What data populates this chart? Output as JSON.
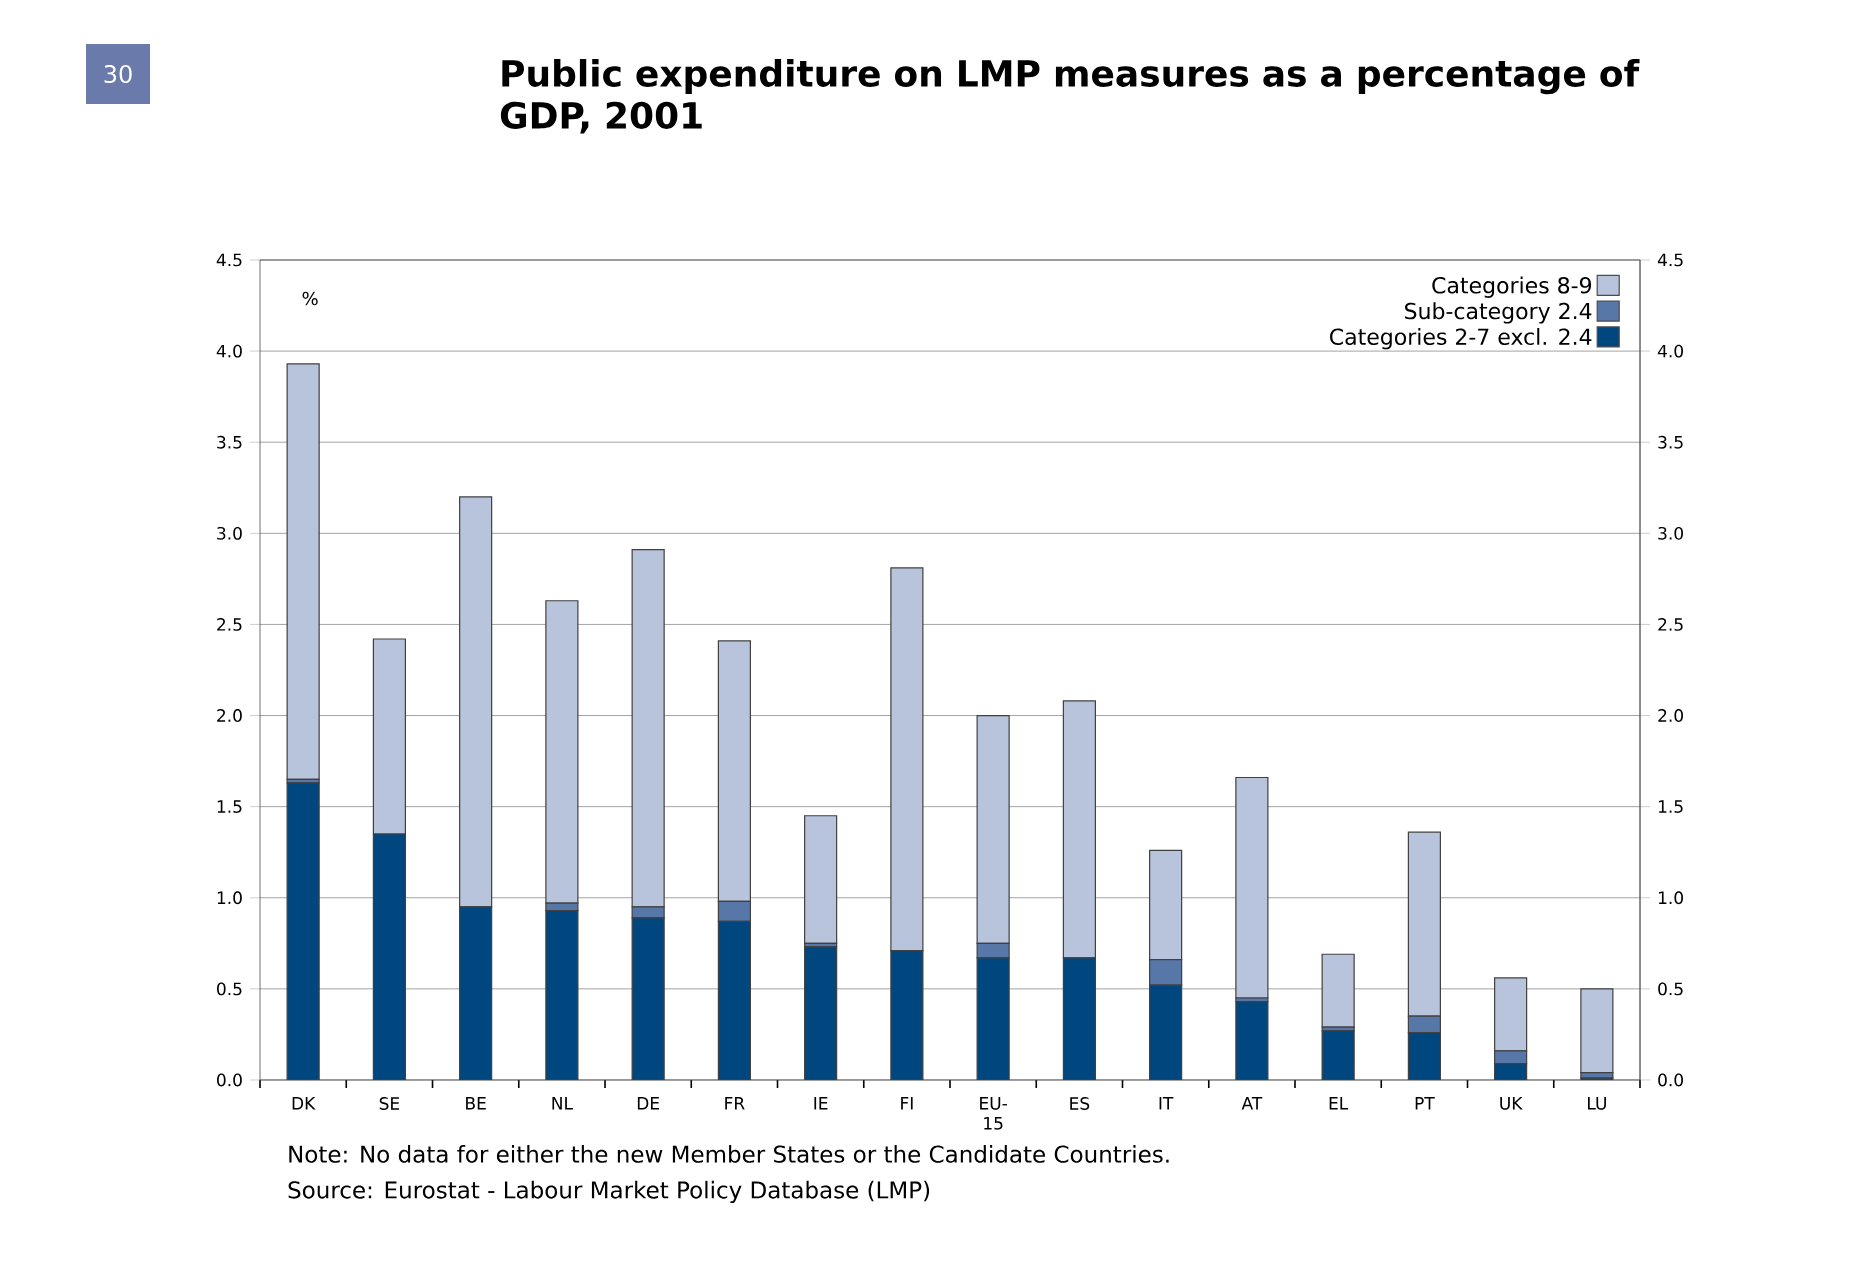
{
  "chart_data": {
    "type": "bar",
    "title": "Public expenditure on LMP measures as a percentage of GDP, 2001",
    "categories": [
      "DK",
      "SE",
      "BE",
      "NL",
      "DE",
      "FR",
      "IE",
      "FI",
      "EU-15",
      "ES",
      "IT",
      "AT",
      "EL",
      "PT",
      "UK",
      "LU"
    ],
    "stacked": true,
    "series": [
      {
        "name": "Categories 2-7 excl. 2.4",
        "color": "#00467f",
        "values": [
          1.63,
          1.35,
          0.95,
          0.93,
          0.89,
          0.87,
          0.73,
          0.71,
          0.67,
          0.67,
          0.52,
          0.43,
          0.27,
          0.26,
          0.09,
          0.01
        ]
      },
      {
        "name": "Sub-category 2.4",
        "color": "#5677a8",
        "values": [
          0.02,
          0,
          0,
          0.04,
          0.06,
          0.11,
          0.02,
          0,
          0.08,
          0,
          0.14,
          0.02,
          0.02,
          0.09,
          0.07,
          0.03
        ]
      },
      {
        "name": "Categories 8-9",
        "color": "#b8c4dc",
        "values": [
          2.28,
          1.07,
          2.25,
          1.66,
          1.96,
          1.43,
          0.7,
          2.1,
          1.25,
          1.41,
          0.6,
          1.21,
          0.4,
          1.01,
          0.4,
          0.46
        ]
      }
    ],
    "ylim": [
      0,
      4.5
    ],
    "yticks": [
      {
        "value": 0,
        "label": "0.0"
      },
      {
        "value": 0.5,
        "label": "0.5"
      },
      {
        "value": 1,
        "label": "1.0"
      },
      {
        "value": 1.5,
        "label": "1.5"
      },
      {
        "value": 2,
        "label": "2.0"
      },
      {
        "value": 2.5,
        "label": "2.5"
      },
      {
        "value": 3,
        "label": "3.0"
      },
      {
        "value": 3.5,
        "label": "3.5"
      },
      {
        "value": 4,
        "label": "4.0"
      },
      {
        "value": 4.5,
        "label": "4.5"
      }
    ],
    "y2lim": [
      0,
      4.5
    ],
    "y2ticks": [
      {
        "value": 0,
        "label": "0.0"
      },
      {
        "value": 0.5,
        "label": "0.5"
      },
      {
        "value": 1,
        "label": "1.0"
      },
      {
        "value": 1.5,
        "label": "1.5"
      },
      {
        "value": 2,
        "label": "2.0"
      },
      {
        "value": 2.5,
        "label": "2.5"
      },
      {
        "value": 3,
        "label": "3.0"
      },
      {
        "value": 3.5,
        "label": "3.5"
      },
      {
        "value": 4,
        "label": "4.0"
      },
      {
        "value": 4.5,
        "label": "4.5"
      }
    ],
    "grid": "y",
    "legend": "top right",
    "annotations": [
      "30",
      "%",
      "Note: No data for either the new Member States or the Candidate Countries.",
      "Source: Eurostat - Labour Market Policy Database (LMP)"
    ]
  }
}
